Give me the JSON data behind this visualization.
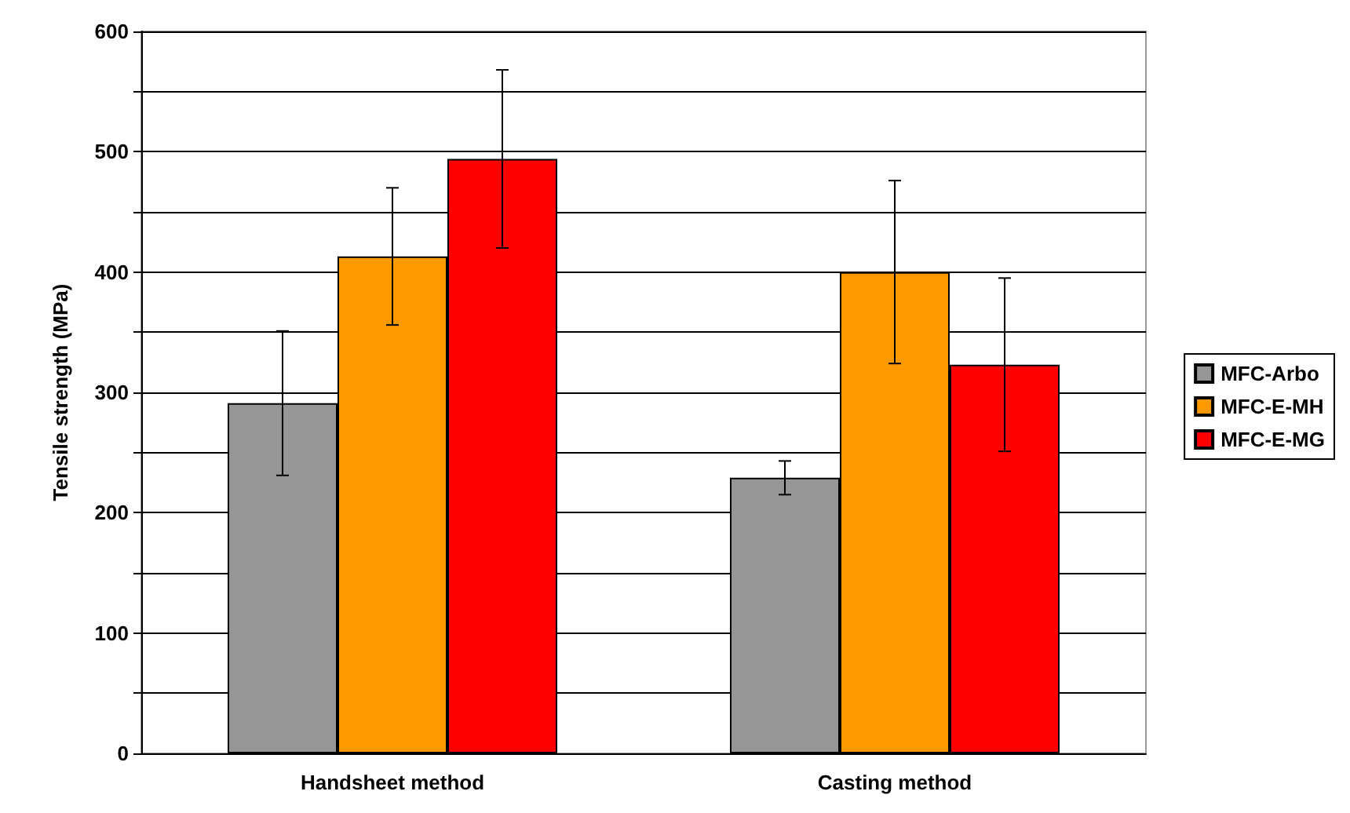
{
  "chart_data": {
    "type": "bar",
    "ylabel": "Tensile strength (MPa)",
    "categories": [
      "Handsheet method",
      "Casting method"
    ],
    "series": [
      {
        "name": "MFC-Arbo",
        "color": "#969696",
        "values": [
          291,
          229
        ],
        "errors": [
          60,
          14
        ]
      },
      {
        "name": "MFC-E-MH",
        "color": "#ff9900",
        "values": [
          413,
          400
        ],
        "errors": [
          57,
          76
        ]
      },
      {
        "name": "MFC-E-MG",
        "color": "#ff0000",
        "values": [
          494,
          323
        ],
        "errors": [
          74,
          72
        ]
      }
    ],
    "ylim": [
      0,
      600
    ],
    "yticks": [
      0,
      {
        "value": 50,
        "label": null
      },
      100,
      {
        "value": 150,
        "label": null
      },
      200,
      {
        "value": 250,
        "label": null
      },
      300,
      {
        "value": 350,
        "label": null
      },
      400,
      {
        "value": 450,
        "label": null
      },
      500,
      {
        "value": 550,
        "label": null
      },
      600
    ],
    "grid": "y",
    "legend": "right"
  }
}
